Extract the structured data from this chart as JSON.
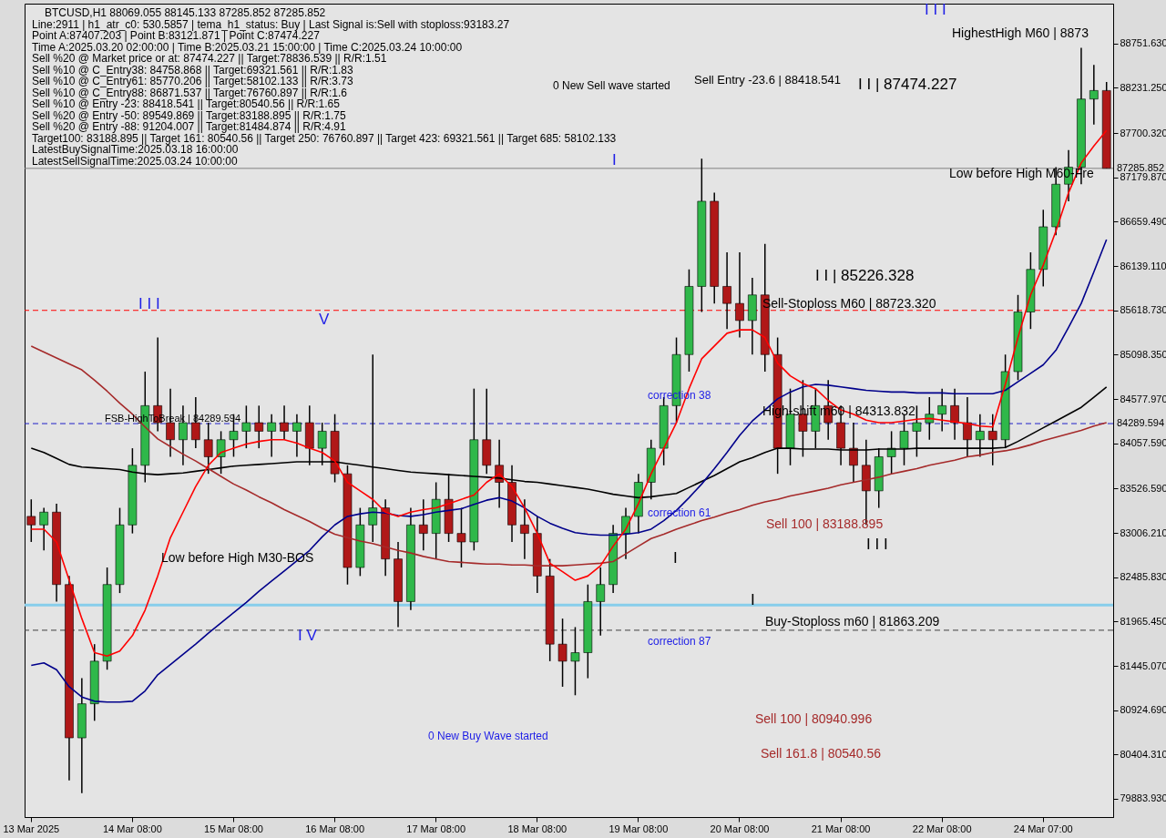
{
  "chart_data": {
    "type": "candlestick",
    "title": "BTCUSD,H1  88069.055 88145.133 87285.852 87285.852",
    "categories": [
      "13 Mar 2025",
      null,
      null,
      null,
      null,
      null,
      null,
      null,
      "14 Mar 08:00",
      null,
      null,
      null,
      null,
      null,
      null,
      null,
      "15 Mar 08:00",
      null,
      null,
      null,
      null,
      null,
      null,
      null,
      "16 Mar 08:00",
      null,
      null,
      null,
      null,
      null,
      null,
      null,
      "17 Mar 08:00",
      null,
      null,
      null,
      null,
      null,
      null,
      null,
      "18 Mar 08:00",
      null,
      null,
      null,
      null,
      null,
      null,
      null,
      "19 Mar 08:00",
      null,
      null,
      null,
      null,
      null,
      null,
      null,
      "20 Mar 08:00",
      null,
      null,
      null,
      null,
      null,
      null,
      null,
      "21 Mar 08:00",
      null,
      null,
      null,
      null,
      null,
      null,
      null,
      "22 Mar 08:00",
      null,
      null,
      null,
      null,
      null,
      null,
      null,
      "24 Mar 07:00",
      null,
      null,
      null,
      null,
      null
    ],
    "ohlc": [
      [
        83200,
        83400,
        82900,
        83100
      ],
      [
        83100,
        83300,
        82800,
        83250
      ],
      [
        83250,
        83350,
        82200,
        82400
      ],
      [
        82400,
        82500,
        80100,
        80600
      ],
      [
        80600,
        81300,
        79950,
        81000
      ],
      [
        81000,
        81700,
        80800,
        81500
      ],
      [
        81500,
        82600,
        81400,
        82400
      ],
      [
        82400,
        83300,
        82300,
        83100
      ],
      [
        83100,
        84000,
        83000,
        83800
      ],
      [
        83800,
        84900,
        83600,
        84500
      ],
      [
        84500,
        85300,
        84200,
        84300
      ],
      [
        84300,
        84700,
        83900,
        84100
      ],
      [
        84100,
        84500,
        83800,
        84300
      ],
      [
        84300,
        84600,
        84000,
        84100
      ],
      [
        84100,
        84300,
        83700,
        83900
      ],
      [
        83900,
        84200,
        83700,
        84100
      ],
      [
        84100,
        84400,
        83900,
        84200
      ],
      [
        84200,
        84500,
        84000,
        84300
      ],
      [
        84300,
        84500,
        84000,
        84200
      ],
      [
        84200,
        84400,
        83900,
        84300
      ],
      [
        84300,
        84500,
        84100,
        84200
      ],
      [
        84200,
        84400,
        83900,
        84300
      ],
      [
        84300,
        84500,
        83800,
        84000
      ],
      [
        84000,
        84300,
        83800,
        84200
      ],
      [
        84200,
        84400,
        83600,
        83700
      ],
      [
        83700,
        83800,
        82400,
        82600
      ],
      [
        82600,
        83300,
        82500,
        83100
      ],
      [
        83100,
        85100,
        82900,
        83300
      ],
      [
        83300,
        83400,
        82500,
        82700
      ],
      [
        82700,
        82900,
        81900,
        82200
      ],
      [
        82200,
        83300,
        82100,
        83100
      ],
      [
        83100,
        83400,
        82800,
        83000
      ],
      [
        83000,
        83600,
        82700,
        83400
      ],
      [
        83400,
        83700,
        82900,
        83000
      ],
      [
        83000,
        83300,
        82600,
        82900
      ],
      [
        82900,
        84700,
        82800,
        84100
      ],
      [
        84100,
        84700,
        83700,
        83800
      ],
      [
        83800,
        84100,
        83300,
        83600
      ],
      [
        83600,
        83800,
        82900,
        83100
      ],
      [
        83100,
        83400,
        82700,
        83000
      ],
      [
        83000,
        83200,
        82300,
        82500
      ],
      [
        82500,
        82700,
        81500,
        81700
      ],
      [
        81700,
        82000,
        81200,
        81500
      ],
      [
        81500,
        81900,
        81100,
        81600
      ],
      [
        81600,
        82400,
        81300,
        82200
      ],
      [
        82200,
        82600,
        81800,
        82400
      ],
      [
        82400,
        83100,
        82300,
        83000
      ],
      [
        83000,
        83300,
        82700,
        83200
      ],
      [
        83200,
        83700,
        83000,
        83600
      ],
      [
        83600,
        84100,
        83400,
        84000
      ],
      [
        84000,
        84600,
        83800,
        84500
      ],
      [
        84500,
        85300,
        84300,
        85100
      ],
      [
        85100,
        86100,
        84900,
        85900
      ],
      [
        85900,
        87400,
        85600,
        86900
      ],
      [
        86900,
        87000,
        85700,
        85900
      ],
      [
        85900,
        86300,
        85400,
        85700
      ],
      [
        85700,
        86300,
        85300,
        85500
      ],
      [
        85500,
        86000,
        85100,
        85800
      ],
      [
        85800,
        86400,
        84900,
        85100
      ],
      [
        85100,
        85300,
        83700,
        84000
      ],
      [
        84000,
        84700,
        83800,
        84400
      ],
      [
        84400,
        84800,
        83900,
        84200
      ],
      [
        84200,
        84700,
        84000,
        84500
      ],
      [
        84500,
        84800,
        84100,
        84300
      ],
      [
        84300,
        84500,
        83800,
        84000
      ],
      [
        84000,
        84300,
        83600,
        83800
      ],
      [
        83800,
        84100,
        83100,
        83500
      ],
      [
        83500,
        84000,
        83300,
        83900
      ],
      [
        83900,
        84200,
        83700,
        84000
      ],
      [
        84000,
        84400,
        83800,
        84200
      ],
      [
        84200,
        84500,
        83900,
        84300
      ],
      [
        84300,
        84600,
        84100,
        84400
      ],
      [
        84400,
        84700,
        84200,
        84500
      ],
      [
        84500,
        84700,
        84100,
        84300
      ],
      [
        84300,
        84600,
        83900,
        84100
      ],
      [
        84100,
        84400,
        83900,
        84200
      ],
      [
        84200,
        84400,
        83800,
        84100
      ],
      [
        84100,
        85100,
        84000,
        84900
      ],
      [
        84900,
        85800,
        84800,
        85600
      ],
      [
        85600,
        86300,
        85400,
        86100
      ],
      [
        86100,
        86800,
        85900,
        86600
      ],
      [
        86600,
        87300,
        86500,
        87100
      ],
      [
        87100,
        87500,
        86900,
        87300
      ],
      [
        87300,
        88700,
        87100,
        88100
      ],
      [
        88100,
        88500,
        87800,
        88200
      ],
      [
        88200,
        88300,
        87285.852,
        87285.852
      ]
    ],
    "series": [
      {
        "type": "line",
        "color": "#000000",
        "values": [
          84000,
          83950,
          83880,
          83810,
          83780,
          83770,
          83760,
          83750,
          83720,
          83700,
          83690,
          83700,
          83710,
          83730,
          83750,
          83770,
          83790,
          83800,
          83810,
          83820,
          83830,
          83840,
          83840,
          83840,
          83840,
          83820,
          83800,
          83780,
          83760,
          83740,
          83720,
          83710,
          83700,
          83690,
          83680,
          83670,
          83660,
          83650,
          83630,
          83610,
          83600,
          83580,
          83560,
          83540,
          83520,
          83490,
          83460,
          83440,
          83420,
          83430,
          83450,
          83470,
          83540,
          83610,
          83680,
          83760,
          83840,
          83890,
          83950,
          84000,
          84000,
          83990,
          83990,
          83990,
          83980,
          83980,
          83980,
          83990,
          83990,
          83990,
          84000,
          84000,
          84000,
          84000,
          84000,
          84000,
          84000,
          84010,
          84080,
          84160,
          84240,
          84320,
          84400,
          84480,
          84600,
          84720
        ]
      },
      {
        "type": "line",
        "color": "#a52a2a",
        "values": [
          85200,
          85130,
          85060,
          84990,
          84920,
          84800,
          84670,
          84530,
          84400,
          84250,
          84110,
          84020,
          83930,
          83850,
          83760,
          83670,
          83580,
          83510,
          83430,
          83360,
          83280,
          83210,
          83140,
          83060,
          82990,
          82950,
          82910,
          82880,
          82840,
          82800,
          82770,
          82730,
          82700,
          82670,
          82660,
          82650,
          82640,
          82640,
          82630,
          82630,
          82620,
          82620,
          82620,
          82630,
          82640,
          82650,
          82670,
          82760,
          82850,
          82940,
          82990,
          83050,
          83100,
          83150,
          83190,
          83240,
          83280,
          83330,
          83370,
          83400,
          83440,
          83470,
          83500,
          83530,
          83570,
          83600,
          83630,
          83660,
          83700,
          83730,
          83760,
          83800,
          83830,
          83860,
          83900,
          83920,
          83950,
          83970,
          84000,
          84040,
          84090,
          84130,
          84170,
          84210,
          84260,
          84300
        ]
      },
      {
        "type": "line",
        "color": "#00008b",
        "values": [
          81450,
          81480,
          81400,
          81200,
          81080,
          81030,
          81020,
          81020,
          81030,
          81150,
          81340,
          81460,
          81580,
          81700,
          81830,
          81950,
          82070,
          82190,
          82320,
          82440,
          82560,
          82680,
          82800,
          82960,
          83100,
          83200,
          83230,
          83250,
          83240,
          83210,
          83200,
          83220,
          83250,
          83270,
          83290,
          83340,
          83390,
          83420,
          83380,
          83300,
          83200,
          83120,
          83060,
          83010,
          82990,
          82980,
          82980,
          82990,
          83010,
          83050,
          83150,
          83270,
          83420,
          83580,
          83760,
          83950,
          84150,
          84320,
          84450,
          84580,
          84660,
          84720,
          84750,
          84740,
          84720,
          84700,
          84680,
          84670,
          84660,
          84660,
          84650,
          84650,
          84650,
          84640,
          84640,
          84640,
          84640,
          84680,
          84780,
          84880,
          84980,
          85150,
          85420,
          85700,
          86070,
          86450
        ]
      },
      {
        "type": "line",
        "color": "#ff0000",
        "values": [
          83050,
          83050,
          82900,
          82450,
          82000,
          81600,
          81560,
          81620,
          81800,
          82100,
          82500,
          82950,
          83250,
          83550,
          83800,
          83950,
          84000,
          84050,
          84080,
          84100,
          84100,
          84060,
          84000,
          83950,
          83850,
          83600,
          83500,
          83400,
          83250,
          83200,
          83250,
          83280,
          83300,
          83350,
          83400,
          83450,
          83600,
          83700,
          83550,
          83300,
          83000,
          82650,
          82550,
          82450,
          82500,
          82620,
          82850,
          83050,
          83350,
          83700,
          84000,
          84300,
          84700,
          85050,
          85200,
          85350,
          85390,
          85390,
          85300,
          85000,
          84850,
          84760,
          84700,
          84560,
          84450,
          84400,
          84330,
          84300,
          84300,
          84320,
          84340,
          84350,
          84330,
          84310,
          84290,
          84260,
          84250,
          84750,
          85300,
          85800,
          86150,
          86550,
          87000,
          87350,
          87550,
          87730
        ]
      }
    ],
    "ylim": [
      79670,
      89220
    ],
    "yticks": [
      {
        "value": 79883.93,
        "label": "79883.930"
      },
      {
        "value": 80404.31,
        "label": "80404.310"
      },
      {
        "value": 80924.69,
        "label": "80924.690"
      },
      {
        "value": 81445.07,
        "label": "81445.070"
      },
      {
        "value": 81965.45,
        "label": "81965.450"
      },
      {
        "value": 82485.83,
        "label": "82485.830"
      },
      {
        "value": 83006.21,
        "label": "83006.210"
      },
      {
        "value": 83526.59,
        "label": "83526.590"
      },
      {
        "value": 84057.59,
        "label": "84057.590"
      },
      {
        "value": 84577.97,
        "label": "84577.970"
      },
      {
        "value": 85098.35,
        "label": "85098.350"
      },
      {
        "value": 85618.73,
        "label": "85618.730"
      },
      {
        "value": 86139.11,
        "label": "86139.110"
      },
      {
        "value": 86659.49,
        "label": "86659.490"
      },
      {
        "value": 87179.87,
        "label": "87179.870"
      },
      {
        "value": 87700.32,
        "label": "87700.320"
      },
      {
        "value": 88231.25,
        "label": "88231.250"
      },
      {
        "value": 88751.63,
        "label": "88751.630"
      }
    ],
    "ref_lines": [
      {
        "axis": "y",
        "value": 87285.852,
        "label": "87285.852",
        "color": "#808080",
        "line_style": "solid"
      },
      {
        "axis": "y",
        "value": 84289.594,
        "label": "84289.594",
        "color": "#1e1ec8",
        "line_style": "dashed"
      },
      {
        "axis": "y",
        "value": 85618.73,
        "color": "#ff0000",
        "line_style": "dashed"
      },
      {
        "axis": "y",
        "value": 81863.209,
        "color": "#404040",
        "line_style": "dashed"
      },
      {
        "axis": "y",
        "value": 82160,
        "color": "#87ceeb",
        "line_style": "solid"
      }
    ],
    "annotations": [
      "Line:2911 | h1_atr_c0: 530.5857 | tema_h1_status: Buy | Last Signal is:Sell with stoploss:93183.27",
      "Point A:87407.203 | Point B:83121.871 | Point C:87474.227",
      "Time A:2025.03.20 02:00:00 | Time B:2025.03.21 15:00:00 | Time C:2025.03.24 10:00:00",
      "Sell %20 @ Market price or at: 87474.227 || Target:78836.539 || R/R:1.51",
      "Sell %10 @ C_Entry38: 84758.868 || Target:69321.561 || R/R:1.83",
      "Sell %10 @ C_Entry61: 85770.206 || Target:58102.133 || R/R:3.73",
      "Sell %10 @ C_Entry88: 86871.537 || Target:76760.897 || R/R:1.6",
      "Sell %10 @ Entry -23: 88418.541 || Target:80540.56 || R/R:1.65",
      "Sell %20 @ Entry -50: 89549.869 || Target:83188.895 || R/R:1.75",
      "Sell %20 @ Entry -88: 91204.007 || Target:81484.874 || R/R:4.91",
      "Target100: 83188.895 || Target 161: 80540.56 || Target 250: 76760.897 || Target 423: 69321.561 || Target 685: 58102.133",
      "LatestBuySignalTime:2025.03.18 16:00:00",
      "LatestSellSignalTime:2025.03.24 10:00:00",
      "Sell Entry -23.6 | 88418.541",
      "I I | 87474.227",
      "HighestHigh   M60 | 8873",
      "Low before High   M60-Fre",
      "I I | 85226.328",
      "Sell-Stoploss M60 | 88723.320",
      "High-shift m60 | 84313.832",
      "FSB-HighToBreak | 84289.594",
      "Sell 100 | 83188.895",
      "Buy-Stoploss m60 | 81863.209",
      "Sell 100 | 80940.996",
      "Sell 161.8 | 80540.56",
      "Low before High   M30-BOS",
      "0 New Sell wave started",
      "0 New Buy Wave started",
      "correction 38",
      "correction 61",
      "correction 87",
      "I I I",
      "V",
      "I V",
      "I",
      "I",
      "I",
      "I I I",
      "I I I"
    ]
  }
}
